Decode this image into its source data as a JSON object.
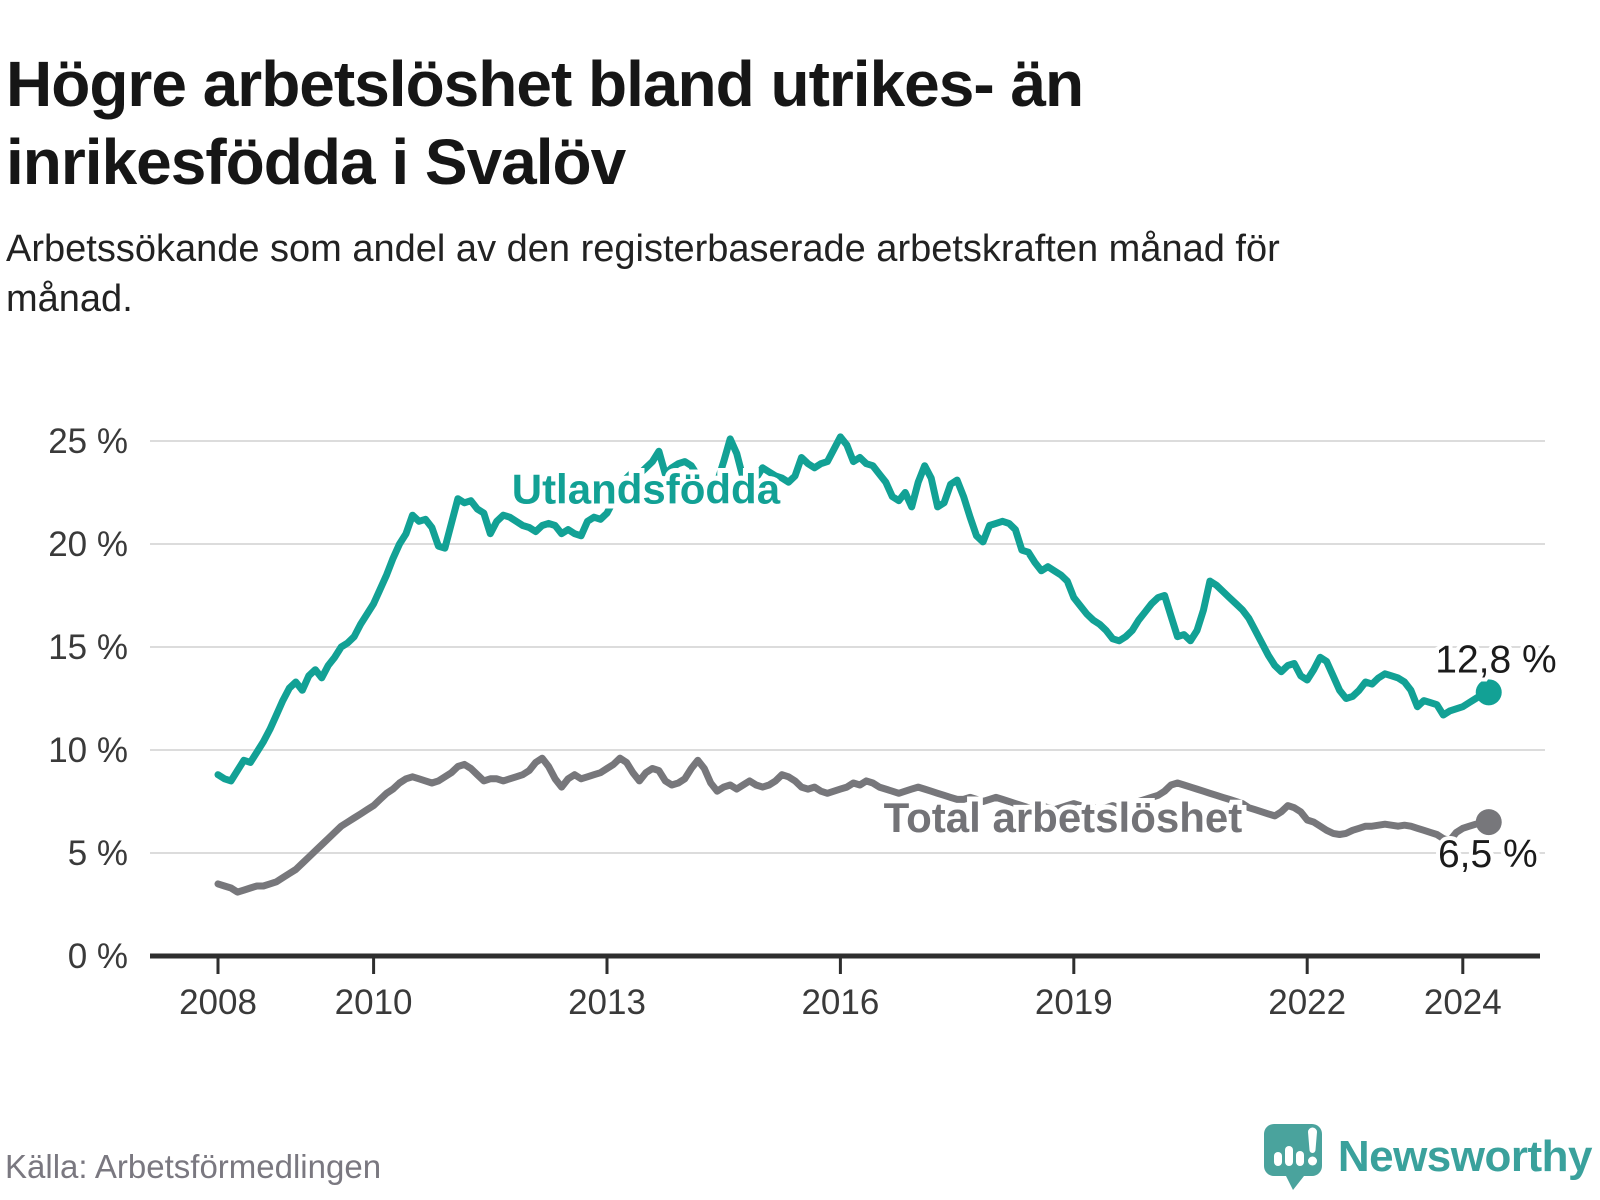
{
  "header": {
    "title": "Högre arbetslöshet bland utrikes- än inrikesfödda i Svalöv",
    "subtitle": "Arbetssökande som andel av den registerbaserade arbetskraften månad för månad."
  },
  "footer": {
    "source": "Källa: Arbetsförmedlingen",
    "brand": "Newsworthy"
  },
  "colors": {
    "utlandsfodda_line": "#12a195",
    "total_line": "#77777b",
    "axis": "#2e2e2e",
    "gridline": "#dcdcdc",
    "tick_label": "#3a3a3a",
    "end_label": "#1b1b1b",
    "logo_teal": "#4aa39d"
  },
  "chart_data": {
    "type": "line",
    "title": "Högre arbetslöshet bland utrikes- än inrikesfödda i Svalöv",
    "subtitle": "Arbetssökande som andel av den registerbaserade arbetskraften månad för månad.",
    "xlabel": "",
    "ylabel": "",
    "grid": "horizontal",
    "legend_position": "inline-labels",
    "xlim": [
      2007.5,
      2025.2
    ],
    "ylim": [
      0,
      26.5
    ],
    "x_ticks": [
      {
        "label": "2008",
        "year": 2008
      },
      {
        "label": "2010",
        "year": 2010
      },
      {
        "label": "2013",
        "year": 2013
      },
      {
        "label": "2016",
        "year": 2016
      },
      {
        "label": "2019",
        "year": 2019
      },
      {
        "label": "2022",
        "year": 2022
      },
      {
        "label": "2024",
        "year": 2024
      }
    ],
    "y_ticks": [
      {
        "label": "0 %",
        "value": 0
      },
      {
        "label": "5 %",
        "value": 5
      },
      {
        "label": "10 %",
        "value": 10
      },
      {
        "label": "15 %",
        "value": 15
      },
      {
        "label": "20 %",
        "value": 20
      },
      {
        "label": "25 %",
        "value": 25
      }
    ],
    "annotations": [
      {
        "text": "Utlandsfödda",
        "x": 2013.5,
        "y": 22.7,
        "color": "#12a195"
      },
      {
        "text": "Total arbetslöshet",
        "x": 2018.86,
        "y": 6.75,
        "color": "#737377"
      }
    ],
    "series": [
      {
        "name": "Utlandsfödda",
        "color": "#12a195",
        "end_label": "12,8 %",
        "end_value": 12.8,
        "start_year": 2008,
        "interval_months": 1,
        "values": [
          8.8,
          8.6,
          8.5,
          9.0,
          9.5,
          9.4,
          9.9,
          10.4,
          11.0,
          11.7,
          12.4,
          13.0,
          13.3,
          12.9,
          13.6,
          13.9,
          13.5,
          14.1,
          14.5,
          15.0,
          15.2,
          15.5,
          16.1,
          16.6,
          17.1,
          17.8,
          18.5,
          19.3,
          20.0,
          20.5,
          21.4,
          21.1,
          21.2,
          20.8,
          19.9,
          19.8,
          21.0,
          22.2,
          22.0,
          22.1,
          21.7,
          21.5,
          20.5,
          21.1,
          21.4,
          21.3,
          21.1,
          20.9,
          20.8,
          20.6,
          20.9,
          21.0,
          20.9,
          20.5,
          20.7,
          20.5,
          20.4,
          21.1,
          21.3,
          21.2,
          21.5,
          22.1,
          22.7,
          23.2,
          23.5,
          23.4,
          23.7,
          24.0,
          24.5,
          23.4,
          23.7,
          23.9,
          24.0,
          23.8,
          23.3,
          22.6,
          22.4,
          23.0,
          24.0,
          25.1,
          24.4,
          23.2,
          22.6,
          23.2,
          23.7,
          23.5,
          23.3,
          23.2,
          23.0,
          23.3,
          24.2,
          23.9,
          23.7,
          23.9,
          24.0,
          24.6,
          25.2,
          24.8,
          24.0,
          24.2,
          23.9,
          23.8,
          23.4,
          23.0,
          22.3,
          22.1,
          22.5,
          21.8,
          23.0,
          23.8,
          23.2,
          21.8,
          22.0,
          22.9,
          23.1,
          22.3,
          21.3,
          20.4,
          20.1,
          20.9,
          21.0,
          21.1,
          21.0,
          20.7,
          19.7,
          19.6,
          19.1,
          18.7,
          18.9,
          18.7,
          18.5,
          18.2,
          17.4,
          17.0,
          16.6,
          16.3,
          16.1,
          15.8,
          15.4,
          15.3,
          15.5,
          15.8,
          16.3,
          16.7,
          17.1,
          17.4,
          17.5,
          16.5,
          15.5,
          15.6,
          15.3,
          15.8,
          16.8,
          18.2,
          18.0,
          17.7,
          17.4,
          17.1,
          16.8,
          16.4,
          15.8,
          15.2,
          14.6,
          14.1,
          13.8,
          14.1,
          14.2,
          13.6,
          13.4,
          13.9,
          14.5,
          14.3,
          13.6,
          12.9,
          12.5,
          12.6,
          12.9,
          13.3,
          13.2,
          13.5,
          13.7,
          13.6,
          13.5,
          13.3,
          12.9,
          12.1,
          12.4,
          12.3,
          12.2,
          11.7,
          11.9,
          12.0,
          12.1,
          12.3,
          12.5,
          12.7,
          12.8
        ]
      },
      {
        "name": "Total arbetslöshet",
        "color": "#77777b",
        "end_label": "6,5 %",
        "end_value": 6.5,
        "start_year": 2008,
        "interval_months": 1,
        "values": [
          3.5,
          3.4,
          3.3,
          3.1,
          3.2,
          3.3,
          3.4,
          3.4,
          3.5,
          3.6,
          3.8,
          4.0,
          4.2,
          4.5,
          4.8,
          5.1,
          5.4,
          5.7,
          6.0,
          6.3,
          6.5,
          6.7,
          6.9,
          7.1,
          7.3,
          7.6,
          7.9,
          8.1,
          8.4,
          8.6,
          8.7,
          8.6,
          8.5,
          8.4,
          8.5,
          8.7,
          8.9,
          9.2,
          9.3,
          9.1,
          8.8,
          8.5,
          8.6,
          8.6,
          8.5,
          8.6,
          8.7,
          8.8,
          9.0,
          9.4,
          9.6,
          9.2,
          8.6,
          8.2,
          8.6,
          8.8,
          8.6,
          8.7,
          8.8,
          8.9,
          9.1,
          9.3,
          9.6,
          9.4,
          8.9,
          8.5,
          8.9,
          9.1,
          9.0,
          8.5,
          8.3,
          8.4,
          8.6,
          9.1,
          9.5,
          9.1,
          8.4,
          8.0,
          8.2,
          8.3,
          8.1,
          8.3,
          8.5,
          8.3,
          8.2,
          8.3,
          8.5,
          8.8,
          8.7,
          8.5,
          8.2,
          8.1,
          8.2,
          8.0,
          7.9,
          8.0,
          8.1,
          8.2,
          8.4,
          8.3,
          8.5,
          8.4,
          8.2,
          8.1,
          8.0,
          7.9,
          8.0,
          8.1,
          8.2,
          8.1,
          8.0,
          7.9,
          7.8,
          7.7,
          7.6,
          7.6,
          7.7,
          7.6,
          7.5,
          7.6,
          7.7,
          7.6,
          7.5,
          7.4,
          7.3,
          7.2,
          7.2,
          7.3,
          7.2,
          7.1,
          7.2,
          7.3,
          7.4,
          7.3,
          7.2,
          7.2,
          7.1,
          7.2,
          7.3,
          7.2,
          7.3,
          7.4,
          7.5,
          7.6,
          7.7,
          7.8,
          8.0,
          8.3,
          8.4,
          8.3,
          8.2,
          8.1,
          8.0,
          7.9,
          7.8,
          7.7,
          7.6,
          7.5,
          7.4,
          7.2,
          7.1,
          7.0,
          6.9,
          6.8,
          7.0,
          7.3,
          7.2,
          7.0,
          6.6,
          6.5,
          6.3,
          6.1,
          5.95,
          5.9,
          5.95,
          6.1,
          6.2,
          6.3,
          6.3,
          6.35,
          6.4,
          6.35,
          6.3,
          6.35,
          6.3,
          6.2,
          6.1,
          6.0,
          5.9,
          5.7,
          5.6,
          6.0,
          6.2,
          6.3,
          6.4,
          6.45,
          6.5
        ]
      }
    ]
  }
}
